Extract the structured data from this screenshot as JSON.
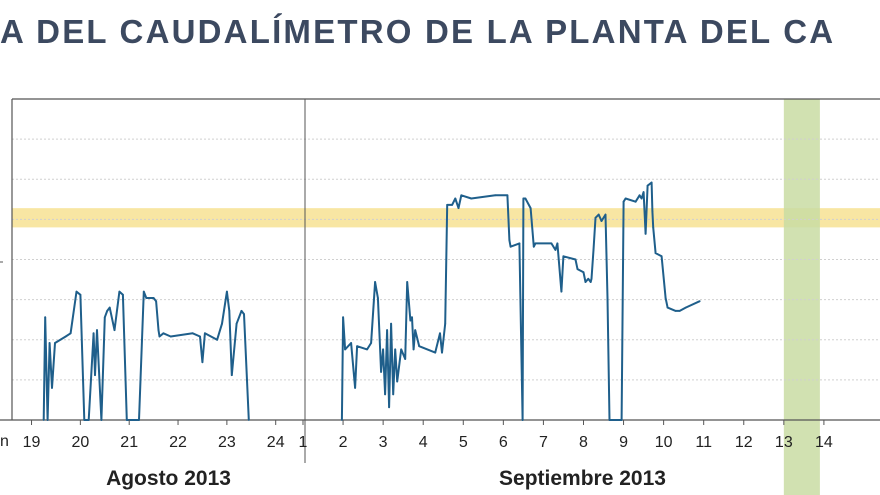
{
  "chart_data": {
    "type": "line",
    "title": "A DEL CAUDALÍMETRO DE LA PLANTA DEL CA",
    "y_axis_left_label": "n",
    "grid": true,
    "colors": {
      "line": "#1f5f8b",
      "threshold_band": "#f8e6a3",
      "highlight_band": "#c9dca3",
      "grid": "#d0d0d0",
      "frame": "#555555"
    },
    "threshold_band_y": [
      60,
      66
    ],
    "y_range": [
      0,
      100
    ],
    "highlight_x_range": [
      13.0,
      13.9
    ],
    "panels": [
      {
        "name": "Agosto 2013",
        "ticks": [
          "19",
          "20",
          "21",
          "22",
          "23",
          "24"
        ],
        "x_range": [
          18.6,
          24.6
        ],
        "series": [
          {
            "values": [
              [
                19.25,
                0
              ],
              [
                19.28,
                32
              ],
              [
                19.33,
                0
              ],
              [
                19.37,
                24
              ],
              [
                19.42,
                10
              ],
              [
                19.48,
                24
              ],
              [
                19.7,
                26
              ],
              [
                19.8,
                27
              ],
              [
                19.92,
                40
              ],
              [
                20.0,
                39
              ],
              [
                20.08,
                0
              ],
              [
                20.17,
                0
              ],
              [
                20.27,
                27
              ],
              [
                20.3,
                14
              ],
              [
                20.34,
                28
              ],
              [
                20.43,
                0
              ],
              [
                20.5,
                32
              ],
              [
                20.55,
                34
              ],
              [
                20.6,
                35
              ],
              [
                20.7,
                28
              ],
              [
                20.8,
                40
              ],
              [
                20.87,
                39
              ],
              [
                20.95,
                0
              ],
              [
                21.2,
                0
              ],
              [
                21.3,
                40
              ],
              [
                21.35,
                38
              ],
              [
                21.5,
                38
              ],
              [
                21.55,
                37
              ],
              [
                21.6,
                28
              ],
              [
                21.62,
                26
              ],
              [
                21.7,
                27
              ],
              [
                21.85,
                26
              ],
              [
                22.3,
                27
              ],
              [
                22.45,
                26
              ],
              [
                22.5,
                18
              ],
              [
                22.55,
                27
              ],
              [
                22.8,
                25
              ],
              [
                22.9,
                30
              ],
              [
                23.0,
                40
              ],
              [
                23.05,
                34
              ],
              [
                23.1,
                14
              ],
              [
                23.2,
                30
              ],
              [
                23.3,
                34
              ],
              [
                23.35,
                33
              ],
              [
                23.45,
                0
              ]
            ]
          }
        ]
      },
      {
        "name": "Septiembre 2013",
        "ticks": [
          "2",
          "3",
          "4",
          "5",
          "6",
          "7",
          "8",
          "9",
          "10",
          "11",
          "12",
          "13",
          "14",
          "1"
        ],
        "x_range": [
          1.05,
          15.4
        ],
        "series": [
          {
            "values": [
              [
                1.97,
                0
              ],
              [
                2.0,
                32
              ],
              [
                2.05,
                22
              ],
              [
                2.2,
                24
              ],
              [
                2.3,
                10
              ],
              [
                2.35,
                23
              ],
              [
                2.6,
                22
              ],
              [
                2.7,
                24
              ],
              [
                2.8,
                43
              ],
              [
                2.87,
                38
              ],
              [
                2.95,
                15
              ],
              [
                3.0,
                22
              ],
              [
                3.05,
                8
              ],
              [
                3.1,
                28
              ],
              [
                3.15,
                4
              ],
              [
                3.2,
                30
              ],
              [
                3.25,
                8
              ],
              [
                3.3,
                22
              ],
              [
                3.35,
                12
              ],
              [
                3.45,
                22
              ],
              [
                3.55,
                19
              ],
              [
                3.6,
                43
              ],
              [
                3.68,
                31
              ],
              [
                3.72,
                32
              ],
              [
                3.76,
                22
              ],
              [
                3.8,
                28
              ],
              [
                3.9,
                23
              ],
              [
                4.3,
                21
              ],
              [
                4.42,
                27
              ],
              [
                4.47,
                21
              ],
              [
                4.55,
                30
              ],
              [
                4.6,
                67
              ],
              [
                4.72,
                67
              ],
              [
                4.8,
                69
              ],
              [
                4.88,
                66
              ],
              [
                4.95,
                70
              ],
              [
                5.2,
                69
              ],
              [
                5.8,
                70
              ],
              [
                6.1,
                70
              ],
              [
                6.15,
                56
              ],
              [
                6.18,
                54
              ],
              [
                6.4,
                55
              ],
              [
                6.48,
                0
              ],
              [
                6.5,
                69
              ],
              [
                6.55,
                69
              ],
              [
                6.68,
                66
              ],
              [
                6.76,
                54
              ],
              [
                6.8,
                55
              ],
              [
                7.2,
                55
              ],
              [
                7.3,
                53
              ],
              [
                7.35,
                55
              ],
              [
                7.45,
                40
              ],
              [
                7.5,
                51
              ],
              [
                7.8,
                50
              ],
              [
                7.85,
                47
              ],
              [
                8.0,
                46
              ],
              [
                8.05,
                43
              ],
              [
                8.12,
                44
              ],
              [
                8.18,
                43
              ],
              [
                8.2,
                44
              ],
              [
                8.25,
                53
              ],
              [
                8.3,
                63
              ],
              [
                8.38,
                64
              ],
              [
                8.45,
                62
              ],
              [
                8.55,
                64
              ],
              [
                8.6,
                38
              ],
              [
                8.65,
                0
              ],
              [
                8.95,
                0
              ],
              [
                9.0,
                68
              ],
              [
                9.05,
                69
              ],
              [
                9.3,
                68
              ],
              [
                9.4,
                70
              ],
              [
                9.45,
                69
              ],
              [
                9.5,
                71
              ],
              [
                9.55,
                58
              ],
              [
                9.6,
                73
              ],
              [
                9.7,
                74
              ],
              [
                9.72,
                65
              ],
              [
                9.74,
                60
              ],
              [
                9.8,
                52
              ],
              [
                9.95,
                51
              ],
              [
                10.05,
                38
              ],
              [
                10.1,
                35
              ],
              [
                10.3,
                34
              ],
              [
                10.4,
                34
              ],
              [
                10.55,
                35
              ],
              [
                10.9,
                37
              ]
            ]
          }
        ]
      }
    ]
  }
}
